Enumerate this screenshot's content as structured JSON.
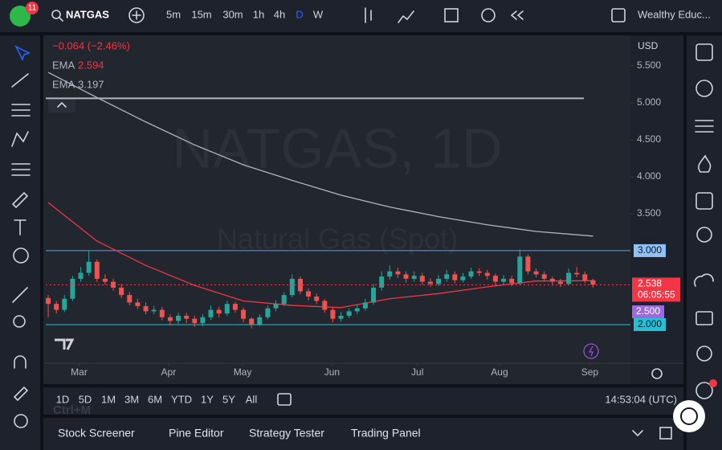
{
  "toolbar": {
    "badge": "11",
    "symbol": "NATGAS",
    "intervals": [
      "5m",
      "15m",
      "30m",
      "1h",
      "4h",
      "D",
      "W"
    ],
    "account": "Wealthy Educ..."
  },
  "chart_data": {
    "type": "candlestick",
    "title": "NATGAS, 1D",
    "subtitle": "Natural Gas (Spot)",
    "change": "−0.064 (−2.46%)",
    "currency": "USD",
    "series": [
      {
        "name": "NATGAS",
        "up_color": "#26a69a",
        "down_color": "#ef5350",
        "open": [
          2.36,
          2.28,
          2.2,
          2.35,
          2.62,
          2.7,
          2.85,
          2.62,
          2.58,
          2.5,
          2.4,
          2.3,
          2.25,
          2.18,
          2.2,
          2.1,
          2.05,
          2.12,
          2.08,
          2.02,
          2.1,
          2.2,
          2.15,
          2.28,
          2.2,
          2.08,
          2.0,
          2.1,
          2.22,
          2.28,
          2.4,
          2.62,
          2.45,
          2.38,
          2.32,
          2.2,
          2.08,
          2.12,
          2.18,
          2.22,
          2.3,
          2.5,
          2.65,
          2.72,
          2.68,
          2.62,
          2.66,
          2.58,
          2.55,
          2.62,
          2.68,
          2.6,
          2.65,
          2.72,
          2.7,
          2.66,
          2.58,
          2.62,
          2.56,
          2.92,
          2.72,
          2.68,
          2.62,
          2.58,
          2.55,
          2.7,
          2.68,
          2.6
        ],
        "high": [
          2.4,
          2.32,
          2.4,
          2.66,
          2.78,
          3.0,
          2.88,
          2.68,
          2.62,
          2.55,
          2.44,
          2.35,
          2.3,
          2.25,
          2.24,
          2.14,
          2.16,
          2.16,
          2.12,
          2.14,
          2.26,
          2.24,
          2.32,
          2.31,
          2.23,
          2.1,
          2.14,
          2.26,
          2.33,
          2.44,
          2.68,
          2.65,
          2.49,
          2.42,
          2.35,
          2.23,
          2.17,
          2.22,
          2.27,
          2.35,
          2.55,
          2.72,
          2.8,
          2.77,
          2.72,
          2.72,
          2.7,
          2.63,
          2.67,
          2.74,
          2.72,
          2.7,
          2.77,
          2.76,
          2.74,
          2.69,
          2.67,
          2.66,
          3.02,
          2.95,
          2.76,
          2.72,
          2.65,
          2.62,
          2.76,
          2.78,
          2.72,
          2.62
        ],
        "low": [
          2.1,
          2.15,
          2.17,
          2.32,
          2.58,
          2.66,
          2.58,
          2.54,
          2.46,
          2.36,
          2.26,
          2.21,
          2.14,
          2.14,
          2.06,
          1.99,
          2.01,
          2.02,
          1.97,
          1.98,
          2.06,
          2.1,
          2.12,
          2.16,
          2.03,
          1.95,
          1.98,
          2.07,
          2.18,
          2.25,
          2.37,
          2.41,
          2.33,
          2.28,
          2.16,
          2.03,
          2.04,
          2.09,
          2.14,
          2.19,
          2.27,
          2.46,
          2.61,
          2.63,
          2.57,
          2.58,
          2.54,
          2.51,
          2.52,
          2.58,
          2.56,
          2.57,
          2.62,
          2.66,
          2.61,
          2.53,
          2.54,
          2.52,
          2.53,
          2.68,
          2.64,
          2.58,
          2.53,
          2.51,
          2.53,
          2.64,
          2.56,
          2.5
        ],
        "close": [
          2.28,
          2.2,
          2.35,
          2.62,
          2.7,
          2.85,
          2.62,
          2.58,
          2.5,
          2.4,
          2.3,
          2.25,
          2.18,
          2.2,
          2.1,
          2.05,
          2.12,
          2.08,
          2.02,
          2.1,
          2.2,
          2.15,
          2.28,
          2.2,
          2.08,
          2.0,
          2.1,
          2.22,
          2.28,
          2.4,
          2.62,
          2.45,
          2.38,
          2.32,
          2.2,
          2.08,
          2.12,
          2.18,
          2.22,
          2.3,
          2.5,
          2.65,
          2.72,
          2.68,
          2.62,
          2.66,
          2.58,
          2.55,
          2.62,
          2.68,
          2.6,
          2.65,
          2.72,
          2.7,
          2.66,
          2.58,
          2.62,
          2.56,
          2.92,
          2.72,
          2.68,
          2.62,
          2.58,
          2.55,
          2.7,
          2.68,
          2.6,
          2.54
        ]
      }
    ],
    "indicators": [
      {
        "name": "EMA",
        "color": "#f23645",
        "x": [
          0,
          6,
          12,
          18,
          24,
          30,
          36,
          42,
          48,
          54,
          60,
          67
        ],
        "values": [
          3.65,
          3.13,
          2.8,
          2.53,
          2.32,
          2.26,
          2.23,
          2.35,
          2.42,
          2.51,
          2.59,
          2.594
        ]
      },
      {
        "name": "EMA",
        "color": "#b2b5be",
        "x": [
          0,
          6,
          12,
          18,
          24,
          30,
          36,
          42,
          48,
          54,
          60,
          67
        ],
        "values": [
          5.41,
          5.07,
          4.74,
          4.43,
          4.16,
          3.95,
          3.75,
          3.59,
          3.46,
          3.35,
          3.26,
          3.197
        ]
      }
    ],
    "reference_line": 5.06,
    "levels": [
      {
        "value": 3,
        "label": "3.000"
      },
      {
        "value": 2,
        "label": "2.000"
      }
    ],
    "price_marker": {
      "value": 2.5,
      "label": "2.500"
    },
    "last_price": 2.538,
    "countdown": "06:05:55",
    "ylim": [
      1.5,
      5.9
    ],
    "yticks": [
      {
        "value": 3.5,
        "label": "3.500"
      },
      {
        "value": 4,
        "label": "4.000"
      },
      {
        "value": 4.5,
        "label": "4.500"
      },
      {
        "value": 5,
        "label": "5.000"
      },
      {
        "value": 5.5,
        "label": "5.500"
      }
    ],
    "xlim": [
      -0.3,
      71.6
    ],
    "xticks": [
      {
        "value": 3.8,
        "label": "Mar"
      },
      {
        "value": 14.8,
        "label": "Apr"
      },
      {
        "value": 23.9,
        "label": "May"
      },
      {
        "value": 34.9,
        "label": "Jun"
      },
      {
        "value": 45.4,
        "label": "Jul"
      },
      {
        "value": 55.5,
        "label": "Aug"
      },
      {
        "value": 66.6,
        "label": "Sep"
      }
    ]
  },
  "ranges": [
    "1D",
    "5D",
    "1M",
    "3M",
    "6M",
    "YTD",
    "1Y",
    "5Y",
    "All"
  ],
  "clock": "14:53:04 (UTC)",
  "hint": "Ctrl+M",
  "panels": [
    "Stock Screener",
    "Pine Editor",
    "Strategy Tester",
    "Trading Panel"
  ]
}
